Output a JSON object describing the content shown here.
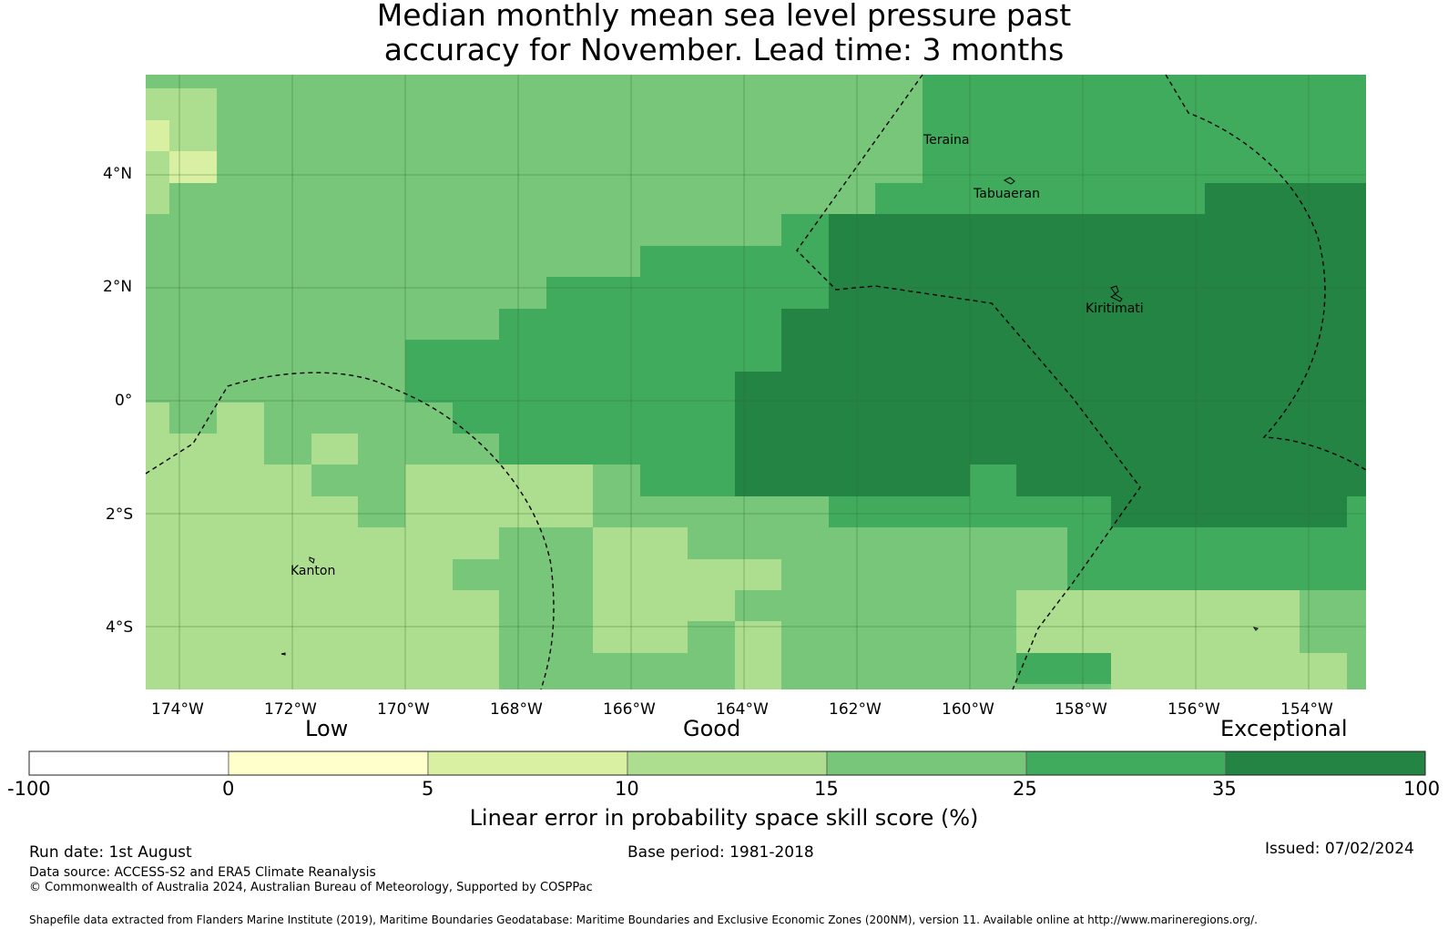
{
  "title": {
    "line1": "Median monthly mean sea level pressure past",
    "line2": "accuracy for November. Lead time: 3 months"
  },
  "map": {
    "x_ticks": [
      "174°W",
      "172°W",
      "170°W",
      "168°W",
      "166°W",
      "164°W",
      "162°W",
      "160°W",
      "158°W",
      "156°W",
      "154°W"
    ],
    "y_ticks": [
      "4°N",
      "2°N",
      "0°",
      "2°S",
      "4°S"
    ],
    "place_labels": [
      "Teraina",
      "Tabuaeran",
      "Kiritimati",
      "Kanton"
    ],
    "level_colors": [
      "#ffffff",
      "#ffffcc",
      "#d9f0a3",
      "#addd8e",
      "#78c679",
      "#41ab5d",
      "#238443"
    ],
    "boundary_style": "dashed black lines (EEZ)",
    "grid": true
  },
  "colorbar": {
    "category_labels": [
      "Low",
      "Good",
      "Exceptional"
    ],
    "tick_labels": [
      "-100",
      "0",
      "5",
      "10",
      "15",
      "25",
      "35",
      "100"
    ],
    "label": "Linear error in probability space skill score (%)"
  },
  "info": {
    "run_date": "Run date: 1st August",
    "base_period": "Base period: 1981-2018",
    "issued": "Issued: 07/02/2024",
    "data_source": "Data source: ACCESS-S2 and ERA5 Climate Reanalysis",
    "copyright": "© Commonwealth of Australia 2024, Australian Bureau of Meteorology, Supported by COSPPac",
    "shapefile": "Shapefile data extracted from Flanders Marine Institute (2019), Maritime Boundaries Geodatabase: Maritime Boundaries and Exclusive Economic Zones (200NM), version 11. Available online at http://www.marineregions.org/."
  }
}
